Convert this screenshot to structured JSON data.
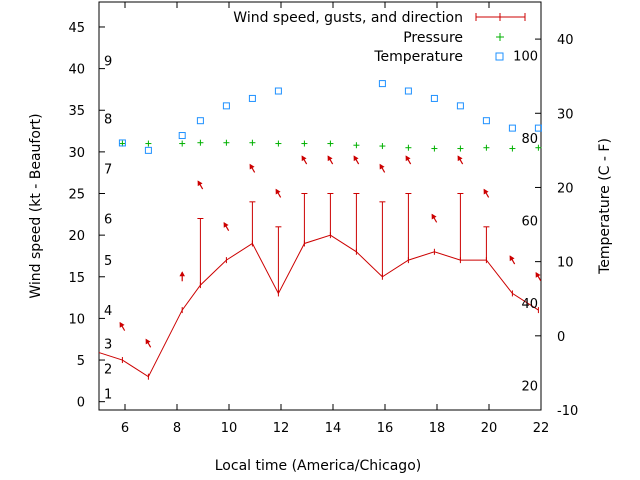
{
  "chart_data": {
    "type": "line",
    "xlabel": "Local time (America/Chicago)",
    "ylabel": "Wind speed (kt - Beaufort)",
    "y2label": "Temperature (C - F)",
    "xlim": [
      5,
      22
    ],
    "ylim": [
      -1,
      48
    ],
    "y2lim": [
      -10,
      45
    ],
    "x_ticks": [
      6,
      8,
      10,
      12,
      14,
      16,
      18,
      20,
      22
    ],
    "y_ticks": [
      0,
      5,
      10,
      15,
      20,
      25,
      30,
      35,
      40,
      45
    ],
    "y2_ticks": [
      -10,
      0,
      10,
      20,
      30,
      40
    ],
    "fahrenheit_ticks": [
      {
        "label": "20",
        "celsius": -6.67
      },
      {
        "label": "40",
        "celsius": 4.44
      },
      {
        "label": "60",
        "celsius": 15.56
      },
      {
        "label": "80",
        "celsius": 26.67
      },
      {
        "label": "100",
        "celsius": 37.78
      }
    ],
    "beaufort_ticks": [
      {
        "label": "1",
        "kt": 1
      },
      {
        "label": "2",
        "kt": 4
      },
      {
        "label": "3",
        "kt": 7
      },
      {
        "label": "4",
        "kt": 11
      },
      {
        "label": "5",
        "kt": 17
      },
      {
        "label": "6",
        "kt": 22
      },
      {
        "label": "7",
        "kt": 28
      },
      {
        "label": "8",
        "kt": 34
      },
      {
        "label": "9",
        "kt": 41
      }
    ],
    "legend_position": "top-right",
    "series": [
      {
        "name": "Wind speed, gusts, and direction",
        "color": "#cc0000",
        "style": "line-with-gust-bars",
        "points": [
          {
            "x": 4.9,
            "y": 5.9
          },
          {
            "x": 5.9,
            "y": 5,
            "gust": null
          },
          {
            "x": 6.9,
            "y": 3,
            "gust": null
          },
          {
            "x": 8.2,
            "y": 11,
            "gust": null
          },
          {
            "x": 8.9,
            "y": 14,
            "gust": 22
          },
          {
            "x": 9.9,
            "y": 17,
            "gust": null
          },
          {
            "x": 10.9,
            "y": 19,
            "gust": 24
          },
          {
            "x": 11.9,
            "y": 13,
            "gust": 21
          },
          {
            "x": 12.9,
            "y": 19,
            "gust": 25
          },
          {
            "x": 13.9,
            "y": 20,
            "gust": 25
          },
          {
            "x": 14.9,
            "y": 18,
            "gust": 25
          },
          {
            "x": 15.9,
            "y": 15,
            "gust": 24
          },
          {
            "x": 16.9,
            "y": 17,
            "gust": 25
          },
          {
            "x": 17.9,
            "y": 18,
            "gust": null
          },
          {
            "x": 18.9,
            "y": 17,
            "gust": 25
          },
          {
            "x": 19.9,
            "y": 17,
            "gust": 21
          },
          {
            "x": 20.9,
            "y": 13,
            "gust": null
          },
          {
            "x": 21.9,
            "y": 11,
            "gust": null
          }
        ],
        "wind_direction_arrows": [
          {
            "x": 5.9,
            "y": 9,
            "dir_deg": 330
          },
          {
            "x": 6.9,
            "y": 7,
            "dir_deg": 330
          },
          {
            "x": 8.2,
            "y": 15,
            "dir_deg": 0
          },
          {
            "x": 8.9,
            "y": 26,
            "dir_deg": 330
          },
          {
            "x": 9.9,
            "y": 21,
            "dir_deg": 330
          },
          {
            "x": 10.9,
            "y": 28,
            "dir_deg": 330
          },
          {
            "x": 11.9,
            "y": 25,
            "dir_deg": 330
          },
          {
            "x": 12.9,
            "y": 29,
            "dir_deg": 330
          },
          {
            "x": 13.9,
            "y": 29,
            "dir_deg": 330
          },
          {
            "x": 14.9,
            "y": 29,
            "dir_deg": 330
          },
          {
            "x": 15.9,
            "y": 28,
            "dir_deg": 330
          },
          {
            "x": 16.9,
            "y": 29,
            "dir_deg": 330
          },
          {
            "x": 17.9,
            "y": 22,
            "dir_deg": 330
          },
          {
            "x": 18.9,
            "y": 29,
            "dir_deg": 330
          },
          {
            "x": 19.9,
            "y": 25,
            "dir_deg": 330
          },
          {
            "x": 20.9,
            "y": 17,
            "dir_deg": 330
          },
          {
            "x": 21.9,
            "y": 15,
            "dir_deg": 330
          }
        ]
      },
      {
        "name": "Pressure",
        "color": "#00b000",
        "marker": "plus",
        "axis": "y",
        "points": [
          {
            "x": 5.9,
            "y": 31
          },
          {
            "x": 6.9,
            "y": 31
          },
          {
            "x": 8.2,
            "y": 31
          },
          {
            "x": 8.9,
            "y": 31.1
          },
          {
            "x": 9.9,
            "y": 31.1
          },
          {
            "x": 10.9,
            "y": 31.1
          },
          {
            "x": 11.9,
            "y": 31
          },
          {
            "x": 12.9,
            "y": 31
          },
          {
            "x": 13.9,
            "y": 31
          },
          {
            "x": 14.9,
            "y": 30.8
          },
          {
            "x": 15.9,
            "y": 30.7
          },
          {
            "x": 16.9,
            "y": 30.5
          },
          {
            "x": 17.9,
            "y": 30.4
          },
          {
            "x": 18.9,
            "y": 30.4
          },
          {
            "x": 19.9,
            "y": 30.5
          },
          {
            "x": 20.9,
            "y": 30.4
          },
          {
            "x": 21.9,
            "y": 30.5
          }
        ]
      },
      {
        "name": "Temperature",
        "color": "#1e90ff",
        "marker": "square",
        "axis": "y2",
        "points": [
          {
            "x": 5.9,
            "y": 26
          },
          {
            "x": 6.9,
            "y": 25
          },
          {
            "x": 8.2,
            "y": 27
          },
          {
            "x": 8.9,
            "y": 29
          },
          {
            "x": 9.9,
            "y": 31
          },
          {
            "x": 10.9,
            "y": 32
          },
          {
            "x": 11.9,
            "y": 33
          },
          {
            "x": 15.9,
            "y": 34
          },
          {
            "x": 16.9,
            "y": 33
          },
          {
            "x": 17.9,
            "y": 32
          },
          {
            "x": 18.9,
            "y": 31
          },
          {
            "x": 19.9,
            "y": 29
          },
          {
            "x": 20.9,
            "y": 28
          },
          {
            "x": 21.9,
            "y": 28
          }
        ]
      }
    ]
  }
}
